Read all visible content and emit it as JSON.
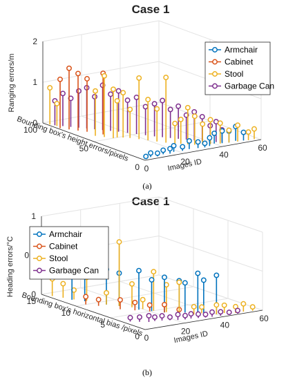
{
  "colors": {
    "Armchair": "#0072BD",
    "Cabinet": "#D95319",
    "Stool": "#EDB120",
    "Garbage Can": "#7E2F8E"
  },
  "chart_data": [
    {
      "type": "3d-stem",
      "title": "Case 1",
      "caption": "(a)",
      "xlabel": "Images ID",
      "ylabel": "Bounding box's height errors/pixels",
      "zlabel": "Ranging errors/m",
      "xlim": [
        0,
        60
      ],
      "ylim": [
        0,
        100
      ],
      "zlim": [
        0,
        2
      ],
      "xticks": [
        0,
        20,
        40,
        60
      ],
      "yticks": [
        0,
        50,
        100
      ],
      "zticks": [
        0,
        1,
        2
      ],
      "grid": true,
      "legend_position": "top-right",
      "series": [
        {
          "name": "Armchair",
          "points": [
            [
              2,
              3,
              0.05
            ],
            [
              5,
              4,
              0.1
            ],
            [
              8,
              3,
              0.08
            ],
            [
              12,
              5,
              0.1
            ],
            [
              15,
              4,
              0.12
            ],
            [
              18,
              6,
              0.15
            ],
            [
              22,
              5,
              0.1
            ],
            [
              26,
              6,
              0.2
            ],
            [
              30,
              5,
              0.15
            ],
            [
              33,
              4,
              0.1
            ],
            [
              36,
              5,
              0.2
            ],
            [
              40,
              8,
              0.25
            ],
            [
              43,
              6,
              0.3
            ],
            [
              46,
              5,
              0.28
            ],
            [
              50,
              6,
              0.35
            ],
            [
              53,
              4,
              0.2
            ]
          ]
        },
        {
          "name": "Cabinet",
          "points": [
            [
              1,
              85,
              1.2
            ],
            [
              3,
              80,
              1.5
            ],
            [
              5,
              75,
              1.4
            ],
            [
              7,
              70,
              1.3
            ],
            [
              10,
              60,
              1.5
            ]
          ]
        },
        {
          "name": "Stool",
          "points": [
            [
              1,
              95,
              0.9
            ],
            [
              2,
              90,
              0.55
            ],
            [
              6,
              60,
              1.1
            ],
            [
              8,
              55,
              1.5
            ],
            [
              10,
              50,
              1.2
            ],
            [
              12,
              50,
              0.9
            ],
            [
              14,
              48,
              1.1
            ],
            [
              16,
              45,
              0.7
            ],
            [
              18,
              40,
              1.5
            ],
            [
              20,
              35,
              1.0
            ],
            [
              22,
              30,
              0.8
            ],
            [
              24,
              25,
              1.6
            ],
            [
              26,
              20,
              0.5
            ],
            [
              28,
              18,
              0.6
            ],
            [
              30,
              15,
              0.9
            ],
            [
              32,
              12,
              0.7
            ],
            [
              35,
              10,
              0.5
            ],
            [
              38,
              8,
              0.6
            ],
            [
              42,
              6,
              0.5
            ],
            [
              46,
              5,
              0.3
            ],
            [
              50,
              4,
              0.4
            ],
            [
              55,
              3,
              0.2
            ],
            [
              58,
              3,
              0.25
            ]
          ]
        },
        {
          "name": "Garbage Can",
          "points": [
            [
              2,
              92,
              0.6
            ],
            [
              4,
              88,
              0.8
            ],
            [
              6,
              84,
              0.7
            ],
            [
              8,
              80,
              0.9
            ],
            [
              10,
              76,
              1.0
            ],
            [
              12,
              72,
              0.8
            ],
            [
              14,
              68,
              1.1
            ],
            [
              16,
              64,
              0.9
            ],
            [
              18,
              60,
              1.0
            ],
            [
              20,
              55,
              0.8
            ],
            [
              22,
              50,
              0.9
            ],
            [
              24,
              45,
              0.7
            ],
            [
              26,
              40,
              0.8
            ],
            [
              28,
              36,
              0.9
            ],
            [
              30,
              32,
              0.7
            ],
            [
              32,
              28,
              0.8
            ],
            [
              34,
              24,
              0.6
            ],
            [
              36,
              20,
              0.7
            ],
            [
              38,
              16,
              0.6
            ],
            [
              40,
              12,
              0.4
            ],
            [
              42,
              10,
              0.5
            ],
            [
              44,
              8,
              0.3
            ]
          ]
        }
      ]
    },
    {
      "type": "3d-stem",
      "title": "Case 1",
      "caption": "(b)",
      "xlabel": "Images ID",
      "ylabel": "Bounding box's horizontal bias /pixels",
      "zlabel": "Heading errors/°C",
      "xlim": [
        0,
        60
      ],
      "ylim": [
        0,
        15
      ],
      "zlim": [
        0,
        1
      ],
      "xticks": [
        0,
        20,
        40,
        60
      ],
      "yticks": [
        0,
        5,
        10,
        15
      ],
      "zticks": [
        0,
        0.5,
        1
      ],
      "grid": true,
      "legend_position": "top-left",
      "series": [
        {
          "name": "Armchair",
          "points": [
            [
              5,
              12,
              0.45
            ],
            [
              8,
              11,
              0.4
            ],
            [
              12,
              9,
              0.45
            ],
            [
              15,
              8,
              0.42
            ],
            [
              18,
              6,
              0.5
            ],
            [
              21,
              5,
              0.4
            ],
            [
              24,
              4,
              0.45
            ],
            [
              28,
              3,
              0.42
            ],
            [
              31,
              3,
              0.38
            ],
            [
              34,
              2,
              0.52
            ],
            [
              37,
              2,
              0.42
            ],
            [
              40,
              1,
              0.5
            ]
          ]
        },
        {
          "name": "Cabinet",
          "points": [
            [
              5,
              10,
              0.1
            ],
            [
              8,
              9,
              0.08
            ],
            [
              12,
              7,
              0.12
            ],
            [
              16,
              6,
              0.1
            ],
            [
              20,
              5,
              0.08
            ],
            [
              24,
              4,
              0.1
            ],
            [
              28,
              3,
              0.05
            ]
          ]
        },
        {
          "name": "Stool",
          "points": [
            [
              2,
              14,
              0.22
            ],
            [
              4,
              13,
              0.18
            ],
            [
              6,
              12,
              0.12
            ],
            [
              9,
              11,
              0.3
            ],
            [
              12,
              9,
              0.15
            ],
            [
              15,
              8,
              0.82
            ],
            [
              18,
              7,
              0.3
            ],
            [
              20,
              6,
              0.12
            ],
            [
              22,
              5,
              0.5
            ],
            [
              25,
              4,
              0.35
            ],
            [
              28,
              3,
              0.4
            ],
            [
              32,
              2,
              0.1
            ],
            [
              36,
              2,
              0.08
            ],
            [
              40,
              1,
              0.12
            ],
            [
              44,
              1,
              0.1
            ],
            [
              48,
              0.5,
              0.08
            ],
            [
              52,
              0.5,
              0.1
            ],
            [
              56,
              0.3,
              0.05
            ]
          ]
        },
        {
          "name": "Garbage Can",
          "points": [
            [
              3,
              3,
              0.05
            ],
            [
              6,
              2.5,
              0.06
            ],
            [
              9,
              2,
              0.08
            ],
            [
              12,
              2,
              0.05
            ],
            [
              15,
              1.8,
              0.06
            ],
            [
              18,
              1.5,
              0.04
            ],
            [
              21,
              1.2,
              0.07
            ],
            [
              24,
              1,
              0.05
            ],
            [
              27,
              1,
              0.06
            ],
            [
              30,
              0.8,
              0.05
            ],
            [
              33,
              0.6,
              0.04
            ],
            [
              36,
              0.5,
              0.06
            ],
            [
              40,
              0.4,
              0.05
            ],
            [
              44,
              0.3,
              0.03
            ],
            [
              48,
              0.2,
              0.04
            ]
          ]
        }
      ]
    }
  ]
}
